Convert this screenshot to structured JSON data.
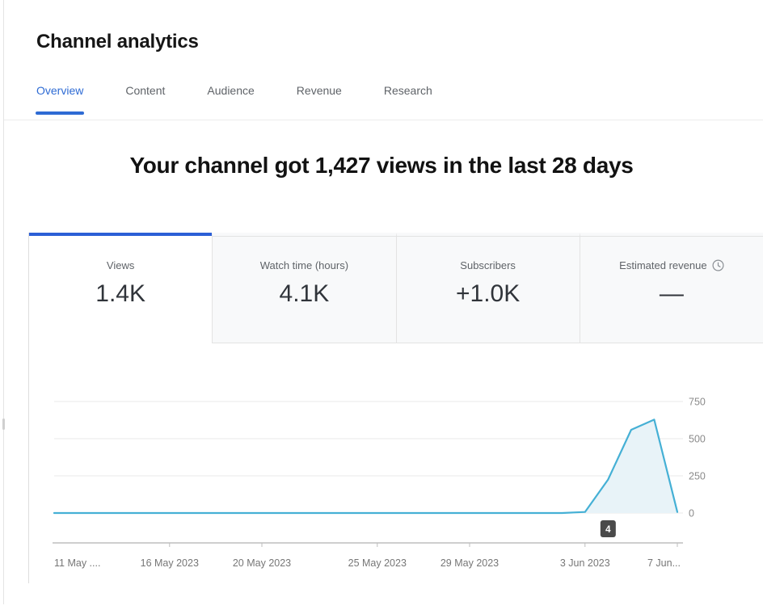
{
  "header": {
    "title": "Channel analytics"
  },
  "tabs": [
    {
      "label": "Overview",
      "active": true
    },
    {
      "label": "Content",
      "active": false
    },
    {
      "label": "Audience",
      "active": false
    },
    {
      "label": "Revenue",
      "active": false
    },
    {
      "label": "Research",
      "active": false
    }
  ],
  "headline": "Your channel got 1,427 views in the last 28 days",
  "metrics": {
    "cards": [
      {
        "label": "Views",
        "value": "1.4K",
        "selected": true
      },
      {
        "label": "Watch time (hours)",
        "value": "4.1K",
        "selected": false
      },
      {
        "label": "Subscribers",
        "value": "+1.0K",
        "selected": false
      },
      {
        "label": "Estimated revenue",
        "value": "—",
        "selected": false,
        "icon": "clock-icon"
      }
    ]
  },
  "chart_data": {
    "type": "area",
    "metric": "Views per day",
    "x_tick_labels": [
      "11 May ....",
      "16 May 2023",
      "20 May 2023",
      "25 May 2023",
      "29 May 2023",
      "3 Jun 2023",
      "7 Jun..."
    ],
    "x_tick_day_indices": [
      0,
      5,
      9,
      14,
      18,
      23,
      27
    ],
    "daily_values": [
      0,
      0,
      0,
      0,
      0,
      0,
      0,
      0,
      0,
      0,
      0,
      0,
      0,
      0,
      0,
      0,
      0,
      0,
      0,
      0,
      0,
      0,
      0,
      7,
      225,
      560,
      628,
      7
    ],
    "total_views": "1,427",
    "ylim": [
      0,
      750
    ],
    "yticks": [
      0,
      250,
      500,
      750
    ],
    "grid": "horizontal",
    "legend": "none",
    "hover_badge": {
      "label": "4",
      "day_index": 24
    },
    "colors": {
      "line": "#45b0d5",
      "fill": "#e8f3f8",
      "grid": "#e9e9e9",
      "axis": "#9e9e9e",
      "tick": "#bdbdbd",
      "axis_text": "#767676",
      "badge_bg": "#4a4a4a",
      "badge_text": "#ffffff"
    }
  },
  "colors": {
    "tab_active_blue": "#2e6bd4",
    "card_selected_border": "#2c5fd6"
  }
}
